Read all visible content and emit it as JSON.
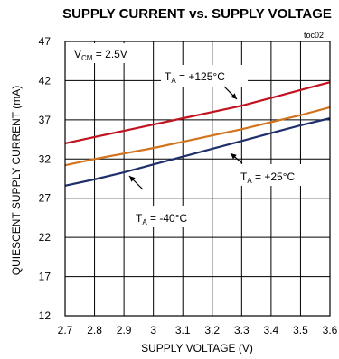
{
  "chart_data": {
    "type": "line",
    "title": "SUPPLY CURRENT vs. SUPPLY VOLTAGE",
    "figure_code": "toc02",
    "condition": {
      "prefix": "V",
      "sub": "CM",
      "text": " = 2.5V"
    },
    "xlabel": "SUPPLY VOLTAGE (V)",
    "ylabel": "QUIESCENT SUPPLY CURRENT (mA)",
    "xlim": [
      2.7,
      3.6
    ],
    "ylim": [
      12,
      47
    ],
    "xticks": [
      "2.7",
      "2.8",
      "2.9",
      "3",
      "3.1",
      "3.2",
      "3.3",
      "3.4",
      "3.5",
      "3.6"
    ],
    "yticks": [
      "47",
      "42",
      "37",
      "32",
      "27",
      "22",
      "17",
      "12"
    ],
    "grid": true,
    "series": [
      {
        "name": "+125°C",
        "label_prefix": "T",
        "label_sub": "A",
        "label_text": " = +125°C",
        "color": "#c0121f",
        "x": [
          2.7,
          2.8,
          2.9,
          3.0,
          3.1,
          3.2,
          3.3,
          3.4,
          3.5,
          3.6
        ],
        "y": [
          34.0,
          34.8,
          35.6,
          36.4,
          37.2,
          38.0,
          38.8,
          39.8,
          40.8,
          41.8
        ]
      },
      {
        "name": "+25°C",
        "label_prefix": "T",
        "label_sub": "A",
        "label_text": " = +25°C",
        "color": "#d2731d",
        "x": [
          2.7,
          2.8,
          2.9,
          3.0,
          3.1,
          3.2,
          3.3,
          3.4,
          3.5,
          3.6
        ],
        "y": [
          31.2,
          32.0,
          32.7,
          33.4,
          34.2,
          35.0,
          35.8,
          36.7,
          37.6,
          38.6
        ]
      },
      {
        "name": "-40°C",
        "label_prefix": "T",
        "label_sub": "A",
        "label_text": " = -40°C",
        "color": "#1f2f6b",
        "x": [
          2.7,
          2.8,
          2.9,
          3.0,
          3.1,
          3.2,
          3.3,
          3.4,
          3.5,
          3.6
        ],
        "y": [
          28.6,
          29.4,
          30.3,
          31.3,
          32.3,
          33.3,
          34.3,
          35.3,
          36.3,
          37.2
        ]
      }
    ]
  }
}
